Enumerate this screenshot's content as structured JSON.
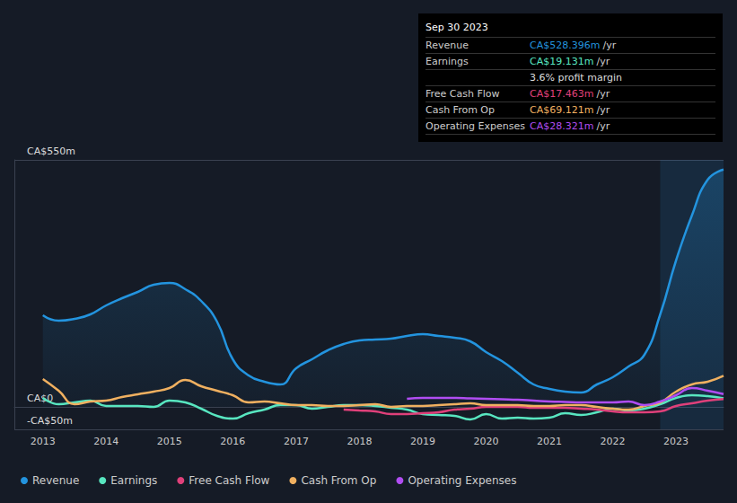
{
  "chart_data": {
    "type": "line",
    "x": [
      2013,
      2013.25,
      2013.5,
      2013.75,
      2014,
      2014.25,
      2014.5,
      2014.75,
      2015,
      2015.25,
      2015.5,
      2015.75,
      2016,
      2016.25,
      2016.5,
      2016.75,
      2017,
      2017.25,
      2017.5,
      2017.75,
      2018,
      2018.25,
      2018.5,
      2018.75,
      2019,
      2019.25,
      2019.5,
      2019.75,
      2020,
      2020.25,
      2020.5,
      2020.75,
      2021,
      2021.25,
      2021.5,
      2021.75,
      2022,
      2022.25,
      2022.5,
      2022.75,
      2023,
      2023.25,
      2023.5,
      2023.75
    ],
    "series": [
      {
        "name": "Revenue",
        "color": "#2394df",
        "values": [
          204,
          192,
          196,
          206,
          226,
          242,
          256,
          272,
          276,
          262,
          236,
          190,
          106,
          70,
          56,
          50,
          86,
          106,
          126,
          140,
          148,
          150,
          152,
          158,
          162,
          158,
          154,
          146,
          122,
          102,
          76,
          50,
          40,
          34,
          32,
          50,
          66,
          90,
          116,
          206,
          326,
          426,
          506,
          528.396
        ]
      },
      {
        "name": "Earnings",
        "color": "#58e6c0",
        "values": [
          20,
          6,
          10,
          14,
          2,
          2,
          2,
          0,
          14,
          10,
          -4,
          -20,
          -26,
          -14,
          -6,
          4,
          4,
          -4,
          0,
          4,
          4,
          2,
          -2,
          -6,
          -16,
          -18,
          -20,
          -28,
          -16,
          -26,
          -24,
          -26,
          -24,
          -14,
          -18,
          -12,
          -4,
          -8,
          -4,
          6,
          20,
          26,
          24,
          19.131
        ]
      },
      {
        "name": "Free Cash Flow",
        "color": "#e0407a",
        "values": [
          null,
          null,
          null,
          null,
          null,
          null,
          null,
          null,
          null,
          null,
          null,
          null,
          null,
          null,
          null,
          null,
          null,
          null,
          null,
          -6,
          -8,
          -10,
          -16,
          -16,
          -14,
          -12,
          -6,
          -4,
          0,
          0,
          0,
          -2,
          -2,
          -2,
          -4,
          -6,
          -10,
          -12,
          -12,
          -10,
          2,
          8,
          14,
          17.463
        ]
      },
      {
        "name": "Cash From Op",
        "color": "#f0b060",
        "values": [
          62,
          36,
          6,
          12,
          14,
          22,
          28,
          34,
          42,
          60,
          46,
          36,
          26,
          10,
          12,
          8,
          4,
          4,
          2,
          2,
          4,
          6,
          0,
          2,
          2,
          4,
          6,
          8,
          4,
          4,
          4,
          2,
          2,
          4,
          4,
          0,
          -4,
          -6,
          2,
          10,
          34,
          50,
          56,
          69.121
        ]
      },
      {
        "name": "Operating Expenses",
        "color": "#b04df2",
        "values": [
          null,
          null,
          null,
          null,
          null,
          null,
          null,
          null,
          null,
          null,
          null,
          null,
          null,
          null,
          null,
          null,
          null,
          null,
          null,
          null,
          null,
          null,
          null,
          18,
          20,
          20,
          20,
          19,
          18,
          17,
          16,
          14,
          12,
          11,
          10,
          10,
          10,
          12,
          4,
          12,
          26,
          42,
          36,
          28.321
        ]
      }
    ],
    "xlim": [
      2012.55,
      2023.75
    ],
    "xticks": [
      2013,
      2014,
      2015,
      2016,
      2017,
      2018,
      2019,
      2020,
      2021,
      2022,
      2023
    ],
    "ylim": [
      -50,
      550
    ],
    "yticks": [
      {
        "value": -50,
        "label": "-CA$50m"
      },
      {
        "value": 0,
        "label": "CA$0"
      },
      {
        "value": 550,
        "label": "CA$550m"
      }
    ],
    "grid": true,
    "legend": "bottom",
    "highlight": [
      2022.75,
      2023.75
    ],
    "info_box": {
      "title": "Sep 30 2023",
      "rows": [
        {
          "label": "Revenue",
          "value": "CA$528.396m",
          "unit": "/yr",
          "color": "#2394df"
        },
        {
          "label": "Earnings",
          "value": "CA$19.131m",
          "unit": "/yr",
          "color": "#58e6c0"
        },
        {
          "value": "3.6% profit margin",
          "color": "#dddddd"
        },
        {
          "label": "Free Cash Flow",
          "value": "CA$17.463m",
          "unit": "/yr",
          "color": "#e0407a"
        },
        {
          "label": "Cash From Op",
          "value": "CA$69.121m",
          "unit": "/yr",
          "color": "#f0b060"
        },
        {
          "label": "Operating Expenses",
          "value": "CA$28.321m",
          "unit": "/yr",
          "color": "#b04df2"
        }
      ]
    }
  }
}
